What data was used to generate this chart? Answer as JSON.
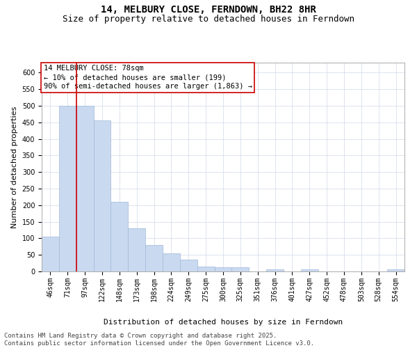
{
  "title": "14, MELBURY CLOSE, FERNDOWN, BH22 8HR",
  "subtitle": "Size of property relative to detached houses in Ferndown",
  "xlabel": "Distribution of detached houses by size in Ferndown",
  "ylabel": "Number of detached properties",
  "categories": [
    "46sqm",
    "71sqm",
    "97sqm",
    "122sqm",
    "148sqm",
    "173sqm",
    "198sqm",
    "224sqm",
    "249sqm",
    "275sqm",
    "300sqm",
    "325sqm",
    "351sqm",
    "376sqm",
    "401sqm",
    "427sqm",
    "452sqm",
    "478sqm",
    "503sqm",
    "528sqm",
    "554sqm"
  ],
  "values": [
    105,
    500,
    500,
    455,
    210,
    130,
    80,
    55,
    35,
    15,
    12,
    12,
    0,
    7,
    0,
    7,
    0,
    0,
    0,
    0,
    7
  ],
  "bar_color": "#c9d9f0",
  "bar_edgecolor": "#a0b8d8",
  "vline_color": "#cc0000",
  "vline_x": 1.5,
  "annotation_title": "14 MELBURY CLOSE: 78sqm",
  "annotation_line1": "← 10% of detached houses are smaller (199)",
  "annotation_line2": "90% of semi-detached houses are larger (1,863) →",
  "annotation_box_edgecolor": "#cc0000",
  "ylim": [
    0,
    630
  ],
  "yticks": [
    0,
    50,
    100,
    150,
    200,
    250,
    300,
    350,
    400,
    450,
    500,
    550,
    600
  ],
  "background_color": "#ffffff",
  "grid_color": "#d0d8e8",
  "footer_line1": "Contains HM Land Registry data © Crown copyright and database right 2025.",
  "footer_line2": "Contains public sector information licensed under the Open Government Licence v3.0.",
  "title_fontsize": 10,
  "subtitle_fontsize": 9,
  "axis_label_fontsize": 8,
  "tick_fontsize": 7,
  "annotation_fontsize": 7.5,
  "footer_fontsize": 6.5
}
